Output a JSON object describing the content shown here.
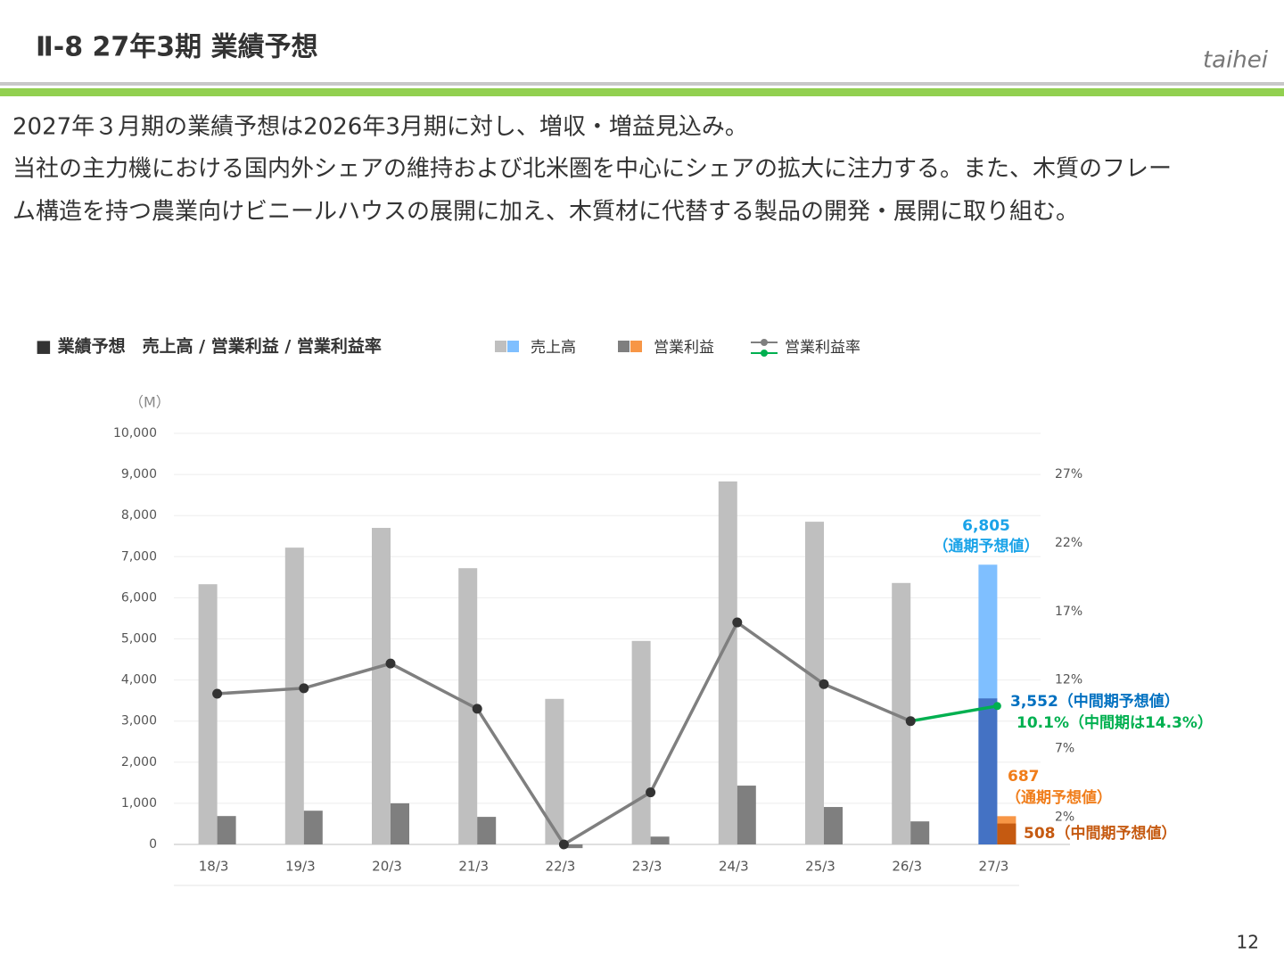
{
  "header": {
    "title": "Ⅱ-8 27年3期 業績予想",
    "brand": "taihei"
  },
  "body": [
    "2027年３月期の業績予想は2026年3月期に対し、増収・増益見込み。",
    "当社の主力機における国内外シェアの維持および北米圏を中心にシェアの拡大に注力する。また、木質のフレー",
    "ム構造を持つ農業向けビニールハウスの展開に加え、木質材に代替する製品の開発・展開に取り組む。"
  ],
  "page_number": "12",
  "chart_data": {
    "type": "bar",
    "title": "■ 業績予想　売上高 / 営業利益 / 営業利益率",
    "y_unit": "（M）",
    "categories": [
      "18/3",
      "19/3",
      "20/3",
      "21/3",
      "22/3",
      "23/3",
      "24/3",
      "25/3",
      "26/3",
      "27/3"
    ],
    "series": [
      {
        "name": "売上高",
        "type": "bar",
        "color": "#bfbfbf",
        "forecast_color": "#7fbfff",
        "values": [
          6330,
          7220,
          7700,
          6720,
          3540,
          4950,
          8830,
          7850,
          6360,
          6805
        ]
      },
      {
        "name": "営業利益",
        "type": "bar",
        "color": "#7f7f7f",
        "forecast_color": "#f79646",
        "values": [
          690,
          820,
          1000,
          670,
          -90,
          190,
          1430,
          910,
          560,
          687
        ]
      },
      {
        "name": "営業利益率",
        "type": "line",
        "axis": "y2",
        "color": "#7f7f7f",
        "forecast_color": "#00b050",
        "values": [
          11.0,
          11.4,
          13.2,
          9.9,
          0,
          3.8,
          16.2,
          11.7,
          9.0,
          10.1
        ]
      }
    ],
    "forecast_midterm": {
      "sales": 3552,
      "sales_color": "#4472c4",
      "operating_income": 508,
      "operating_income_color": "#c55a11"
    },
    "annotations": [
      {
        "text": "6,805",
        "color": "#1aa3e8"
      },
      {
        "text": "（通期予想値）",
        "color": "#1aa3e8"
      },
      {
        "text": "3,552（中間期予想値）",
        "color": "#0070c0"
      },
      {
        "text": "10.1%（中間期は14.3%）",
        "color": "#00b050"
      },
      {
        "text": "687",
        "color": "#f07d1a"
      },
      {
        "text": "（通期予想値）",
        "color": "#f07d1a"
      },
      {
        "text": "508（中間期予想値）",
        "color": "#c55a11"
      }
    ],
    "ylim": [
      0,
      10000
    ],
    "yticks": [
      0,
      {
        "value": 1000,
        "label": "1,000"
      },
      {
        "value": 2000,
        "label": "2,000"
      },
      {
        "value": 3000,
        "label": "3,000"
      },
      {
        "value": 4000,
        "label": "4,000"
      },
      {
        "value": 5000,
        "label": "5,000"
      },
      {
        "value": 6000,
        "label": "6,000"
      },
      {
        "value": 7000,
        "label": "7,000"
      },
      {
        "value": 8000,
        "label": "8,000"
      },
      {
        "value": 9000,
        "label": "9,000"
      },
      {
        "value": 10000,
        "label": "10,000"
      }
    ],
    "y2lim": [
      0,
      30
    ],
    "y2ticks": [
      {
        "value": 2,
        "label": "2%"
      },
      {
        "value": 7,
        "label": "7%"
      },
      {
        "value": 12,
        "label": "12%"
      },
      {
        "value": 17,
        "label": "17%"
      },
      {
        "value": 22,
        "label": "22%"
      },
      {
        "value": 27,
        "label": "27%"
      }
    ],
    "grid": true
  }
}
